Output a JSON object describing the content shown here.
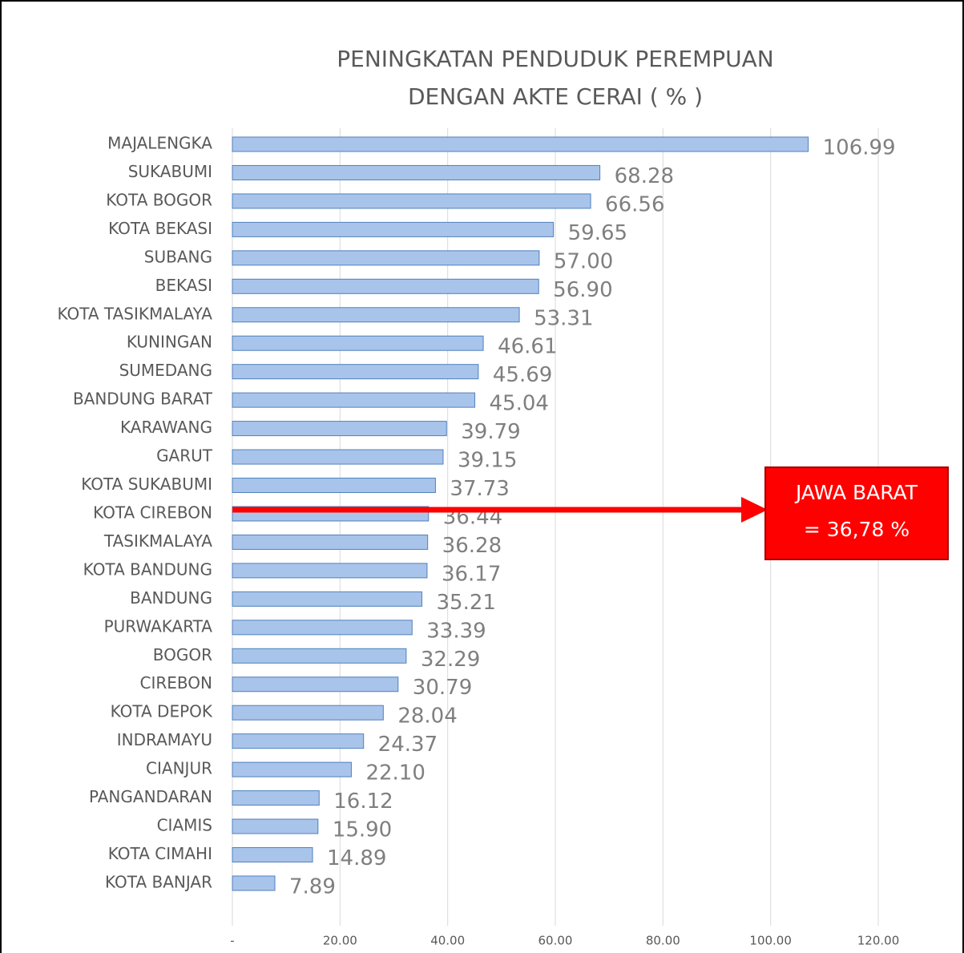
{
  "chart_data": {
    "type": "hbar",
    "title_lines": [
      "PENINGKATAN  PENDUDUK  PEREMPUAN",
      "DENGAN  AKTE  CERAI  (  %  )"
    ],
    "categories": [
      "MAJALENGKA",
      "SUKABUMI",
      "KOTA BOGOR",
      "KOTA BEKASI",
      "SUBANG",
      "BEKASI",
      "KOTA TASIKMALAYA",
      "KUNINGAN",
      "SUMEDANG",
      "BANDUNG BARAT",
      "KARAWANG",
      "GARUT",
      "KOTA SUKABUMI",
      "KOTA CIREBON",
      "TASIKMALAYA",
      "KOTA BANDUNG",
      "BANDUNG",
      "PURWAKARTA",
      "BOGOR",
      "CIREBON",
      "KOTA DEPOK",
      "INDRAMAYU",
      "CIANJUR",
      "PANGANDARAN",
      "CIAMIS",
      "KOTA CIMAHI",
      "KOTA BANJAR"
    ],
    "values": [
      106.99,
      68.28,
      66.56,
      59.65,
      57.0,
      56.9,
      53.31,
      46.61,
      45.69,
      45.04,
      39.79,
      39.15,
      37.73,
      36.44,
      36.28,
      36.17,
      35.21,
      33.39,
      32.29,
      30.79,
      28.04,
      24.37,
      22.1,
      16.12,
      15.9,
      14.89,
      7.89
    ],
    "value_labels": [
      "106.99",
      "68.28",
      "66.56",
      "59.65",
      "57.00",
      "56.90",
      "53.31",
      "46.61",
      "45.69",
      "45.04",
      "39.79",
      "39.15",
      "37.73",
      "36.44",
      "36.28",
      "36.17",
      "35.21",
      "33.39",
      "32.29",
      "30.79",
      "28.04",
      "24.37",
      "22.10",
      "16.12",
      "15.90",
      "14.89",
      "7.89"
    ],
    "color": "#a9c4ea",
    "xlim": [
      0,
      120
    ],
    "xticks": [
      {
        "value": 0,
        "label": "-"
      },
      {
        "value": 20,
        "label": "20.00"
      },
      {
        "value": 40,
        "label": "40.00"
      },
      {
        "value": 60,
        "label": "60.00"
      },
      {
        "value": 80,
        "label": "80.00"
      },
      {
        "value": 100,
        "label": "100.00"
      },
      {
        "value": 120,
        "label": "120.00"
      }
    ],
    "grid": true,
    "annotation_lines": [
      "JAWA BARAT",
      "= 36,78 %"
    ]
  }
}
